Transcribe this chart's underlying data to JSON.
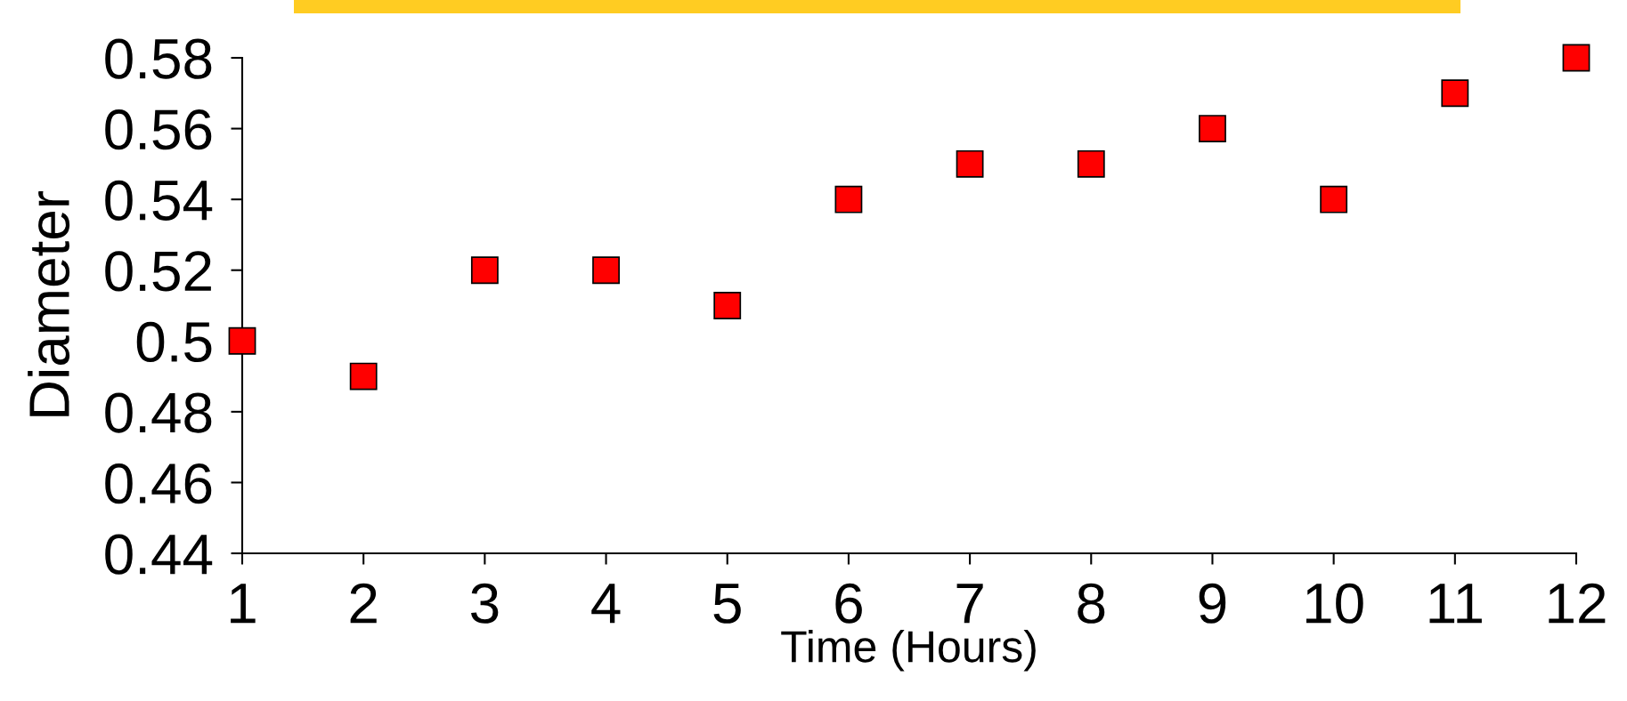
{
  "chart_data": {
    "type": "scatter",
    "xlabel": "Time (Hours)",
    "ylabel": "Diameter",
    "x": [
      1,
      2,
      3,
      4,
      5,
      6,
      7,
      8,
      9,
      10,
      11,
      12
    ],
    "series": [
      {
        "color": "#ff0000",
        "values": [
          0.5,
          0.49,
          0.52,
          0.52,
          0.51,
          0.54,
          0.55,
          0.55,
          0.56,
          0.54,
          0.57,
          0.58
        ]
      }
    ],
    "xlim": [
      1,
      12
    ],
    "xticks": [
      1,
      2,
      3,
      4,
      5,
      6,
      7,
      8,
      9,
      10,
      11,
      12
    ],
    "ylim": [
      0.44,
      0.58
    ],
    "yticks": [
      0.44,
      0.46,
      0.48,
      {
        "value": 0.5,
        "label": "0.5"
      },
      0.52,
      0.54,
      0.56,
      0.58
    ],
    "grid": false,
    "legend": false,
    "marker": "square"
  }
}
